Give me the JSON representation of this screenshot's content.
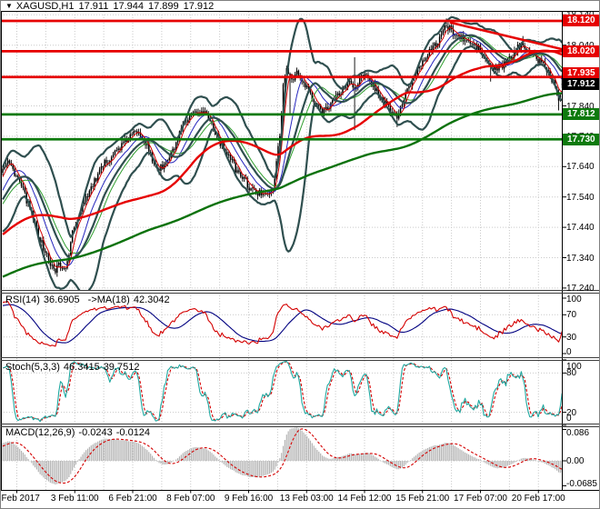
{
  "header": {
    "dropdown_icon": "▼",
    "symbol": "XAGUSD,H1",
    "open": "17.911",
    "high": "17.944",
    "low": "17.899",
    "close": "17.912"
  },
  "legends": {
    "rsi": {
      "name": "RSI(14)",
      "value": "36.6905",
      "ma_name": "->MA(18)",
      "ma_value": "42.3042"
    },
    "stoch": {
      "name": "Stoch(5,3,3)",
      "k": "46.3415",
      "d": "39.7512"
    },
    "macd": {
      "name": "MACD(12,26,9)",
      "main": "-0.0243",
      "signal": "-0.0124"
    }
  },
  "colors": {
    "grid": "#c9c9c9",
    "frame": "#000000",
    "separator": "#3c3c3c",
    "bar": "#000000",
    "red_line": "#e60000",
    "green_line": "#0e7a0e",
    "badge_red": "#e60000",
    "badge_green": "#0e7a0e",
    "badge_black": "#000000",
    "bb": "#2F4F4F",
    "ma_thin_red": "#d40000",
    "ma_thin_blue": "#2525bd",
    "ma_thin_green": "#2f9e2f",
    "ma_thick_red": "#e60000",
    "ma_thick_green": "#0b720b",
    "rsi": "#d40000",
    "rsi_ma": "#000080",
    "stoch_k": "#1fa8a0",
    "stoch_d": "#d40000",
    "macd_hist": "#b4b4b4",
    "macd_signal": "#d40000",
    "text": "#000000"
  },
  "time_axis": {
    "labels": [
      "2 Feb 2017",
      "3 Feb 11:00",
      "6 Feb 21:00",
      "8 Feb 07:00",
      "9 Feb 16:00",
      "13 Feb 03:00",
      "14 Feb 12:00",
      "15 Feb 21:00",
      "17 Feb 07:00",
      "20 Feb 17:00"
    ]
  },
  "chart_data": {
    "type": "candlestick",
    "symbol": "XAGUSD",
    "timeframe": "H1",
    "current_bar": {
      "open": 17.911,
      "high": 17.944,
      "low": 17.899,
      "close": 17.912
    },
    "visible_bars": 330,
    "y_axis": {
      "min": 17.234,
      "max": 18.152,
      "ticks": [
        [
          "18.140",
          18.14
        ],
        [
          "18.040",
          18.04
        ],
        [
          "17.940",
          17.94
        ],
        [
          "17.840",
          17.84
        ],
        [
          "17.740",
          17.74
        ],
        [
          "17.640",
          17.64
        ],
        [
          "17.540",
          17.54
        ],
        [
          "17.440",
          17.44
        ],
        [
          "17.340",
          17.34
        ],
        [
          "17.240",
          17.24
        ]
      ]
    },
    "price_anchors": [
      [
        0,
        17.64
      ],
      [
        3,
        17.66
      ],
      [
        6,
        17.63
      ],
      [
        9,
        17.6
      ],
      [
        12,
        17.56
      ],
      [
        16,
        17.5
      ],
      [
        19,
        17.45
      ],
      [
        22,
        17.4
      ],
      [
        25,
        17.36
      ],
      [
        28,
        17.32
      ],
      [
        31,
        17.29
      ],
      [
        33,
        17.33
      ],
      [
        35,
        17.3
      ],
      [
        38,
        17.32
      ],
      [
        41,
        17.42
      ],
      [
        44,
        17.47
      ],
      [
        48,
        17.53
      ],
      [
        53,
        17.58
      ],
      [
        57,
        17.62
      ],
      [
        61,
        17.66
      ],
      [
        65,
        17.68
      ],
      [
        70,
        17.71
      ],
      [
        75,
        17.74
      ],
      [
        80,
        17.76
      ],
      [
        84,
        17.72
      ],
      [
        88,
        17.66
      ],
      [
        92,
        17.63
      ],
      [
        96,
        17.65
      ],
      [
        101,
        17.7
      ],
      [
        105,
        17.76
      ],
      [
        110,
        17.8
      ],
      [
        115,
        17.82
      ],
      [
        119,
        17.82
      ],
      [
        123,
        17.78
      ],
      [
        128,
        17.72
      ],
      [
        134,
        17.67
      ],
      [
        138,
        17.62
      ],
      [
        142,
        17.6
      ],
      [
        145,
        17.57
      ],
      [
        150,
        17.55
      ],
      [
        154,
        17.56
      ],
      [
        158,
        17.55
      ],
      [
        160,
        17.6
      ],
      [
        163,
        17.75
      ],
      [
        165,
        17.9
      ],
      [
        167,
        17.96
      ],
      [
        170,
        17.93
      ],
      [
        173,
        17.95
      ],
      [
        176,
        17.92
      ],
      [
        180,
        17.89
      ],
      [
        182,
        17.86
      ],
      [
        185,
        17.84
      ],
      [
        188,
        17.82
      ],
      [
        191,
        17.84
      ],
      [
        195,
        17.86
      ],
      [
        198,
        17.88
      ],
      [
        201,
        17.9
      ],
      [
        204,
        17.92
      ],
      [
        207,
        17.9
      ],
      [
        210,
        17.93
      ],
      [
        213,
        17.94
      ],
      [
        216,
        17.92
      ],
      [
        219,
        17.9
      ],
      [
        222,
        17.87
      ],
      [
        226,
        17.84
      ],
      [
        229,
        17.82
      ],
      [
        232,
        17.8
      ],
      [
        235,
        17.85
      ],
      [
        239,
        17.9
      ],
      [
        242,
        17.94
      ],
      [
        245,
        17.97
      ],
      [
        248,
        18.0
      ],
      [
        251,
        18.02
      ],
      [
        255,
        18.04
      ],
      [
        258,
        18.08
      ],
      [
        261,
        18.1
      ],
      [
        264,
        18.09
      ],
      [
        267,
        18.07
      ],
      [
        271,
        18.06
      ],
      [
        274,
        18.05
      ],
      [
        277,
        18.04
      ],
      [
        280,
        18.03
      ],
      [
        283,
        18.0
      ],
      [
        287,
        17.97
      ],
      [
        290,
        17.96
      ],
      [
        293,
        17.97
      ],
      [
        296,
        17.98
      ],
      [
        299,
        18.0
      ],
      [
        303,
        18.03
      ],
      [
        306,
        18.05
      ],
      [
        309,
        18.02
      ],
      [
        312,
        18.0
      ],
      [
        316,
        17.99
      ],
      [
        319,
        17.97
      ],
      [
        321,
        17.95
      ],
      [
        323,
        17.93
      ],
      [
        325,
        17.9
      ],
      [
        327,
        17.86
      ],
      [
        329,
        17.912
      ]
    ],
    "prehistory_anchors": [
      [
        -260,
        17.05
      ],
      [
        -180,
        17.15
      ],
      [
        -120,
        17.25
      ],
      [
        -70,
        17.32
      ],
      [
        -45,
        17.38
      ],
      [
        -25,
        17.42
      ],
      [
        -12,
        17.5
      ],
      [
        -4,
        17.58
      ]
    ],
    "wick_overrides": {
      "169": {
        "low": 17.81
      },
      "207": {
        "low": 17.76,
        "high": 18.0
      },
      "232": {
        "low": 17.77
      },
      "261": {
        "high": 18.128
      },
      "287": {
        "low": 17.92
      },
      "306": {
        "high": 18.07
      },
      "327": {
        "low": 17.825
      }
    },
    "levels": {
      "resistance_red": [
        18.12,
        18.02,
        17.935
      ],
      "support_green": [
        17.812,
        17.73
      ]
    },
    "badges": [
      [
        "18.120",
        18.12,
        "red",
        0
      ],
      [
        "18.020",
        18.02,
        "red",
        0
      ],
      [
        "17.935",
        17.935,
        "red",
        -4
      ],
      [
        "17.912",
        17.912,
        "black",
        0
      ],
      [
        "17.812",
        17.812,
        "green",
        0
      ],
      [
        "17.730",
        17.73,
        "green",
        0
      ]
    ],
    "trendline": {
      "from_bar": 263,
      "from_price": 18.115,
      "to_bar": 331,
      "to_price": 18.024
    },
    "overlays": {
      "bollinger_period": 20,
      "bollinger_dev": 2,
      "ma_thin_red": 5,
      "ma_thin_blue": 13,
      "ma_thin_green": 24,
      "ma_thick_red": 75,
      "ma_thick_green": 220
    },
    "rsi": {
      "period": 14,
      "ma_period": 18,
      "current": 36.6905,
      "ma_current": 42.3042,
      "ticks": [
        [
          "100",
          100
        ],
        [
          "70",
          70
        ],
        [
          "30",
          30
        ],
        [
          "0",
          0
        ]
      ],
      "levels": [
        70,
        30
      ]
    },
    "stoch": {
      "k": 5,
      "d": 3,
      "slowing": 3,
      "current_k": 46.3415,
      "current_d": 39.7512,
      "ticks": [
        [
          "100",
          100
        ],
        [
          "80",
          80
        ],
        [
          "20",
          20
        ],
        [
          "0",
          0
        ]
      ],
      "levels": [
        80,
        20
      ]
    },
    "macd": {
      "fast": 12,
      "slow": 26,
      "signal": 9,
      "current": -0.0243,
      "current_signal": -0.0124,
      "ticks": [
        [
          "0.086",
          0.086
        ],
        [
          "0.00",
          0
        ],
        [
          "-0.0685",
          -0.0685
        ]
      ],
      "levels": [
        0
      ]
    }
  }
}
